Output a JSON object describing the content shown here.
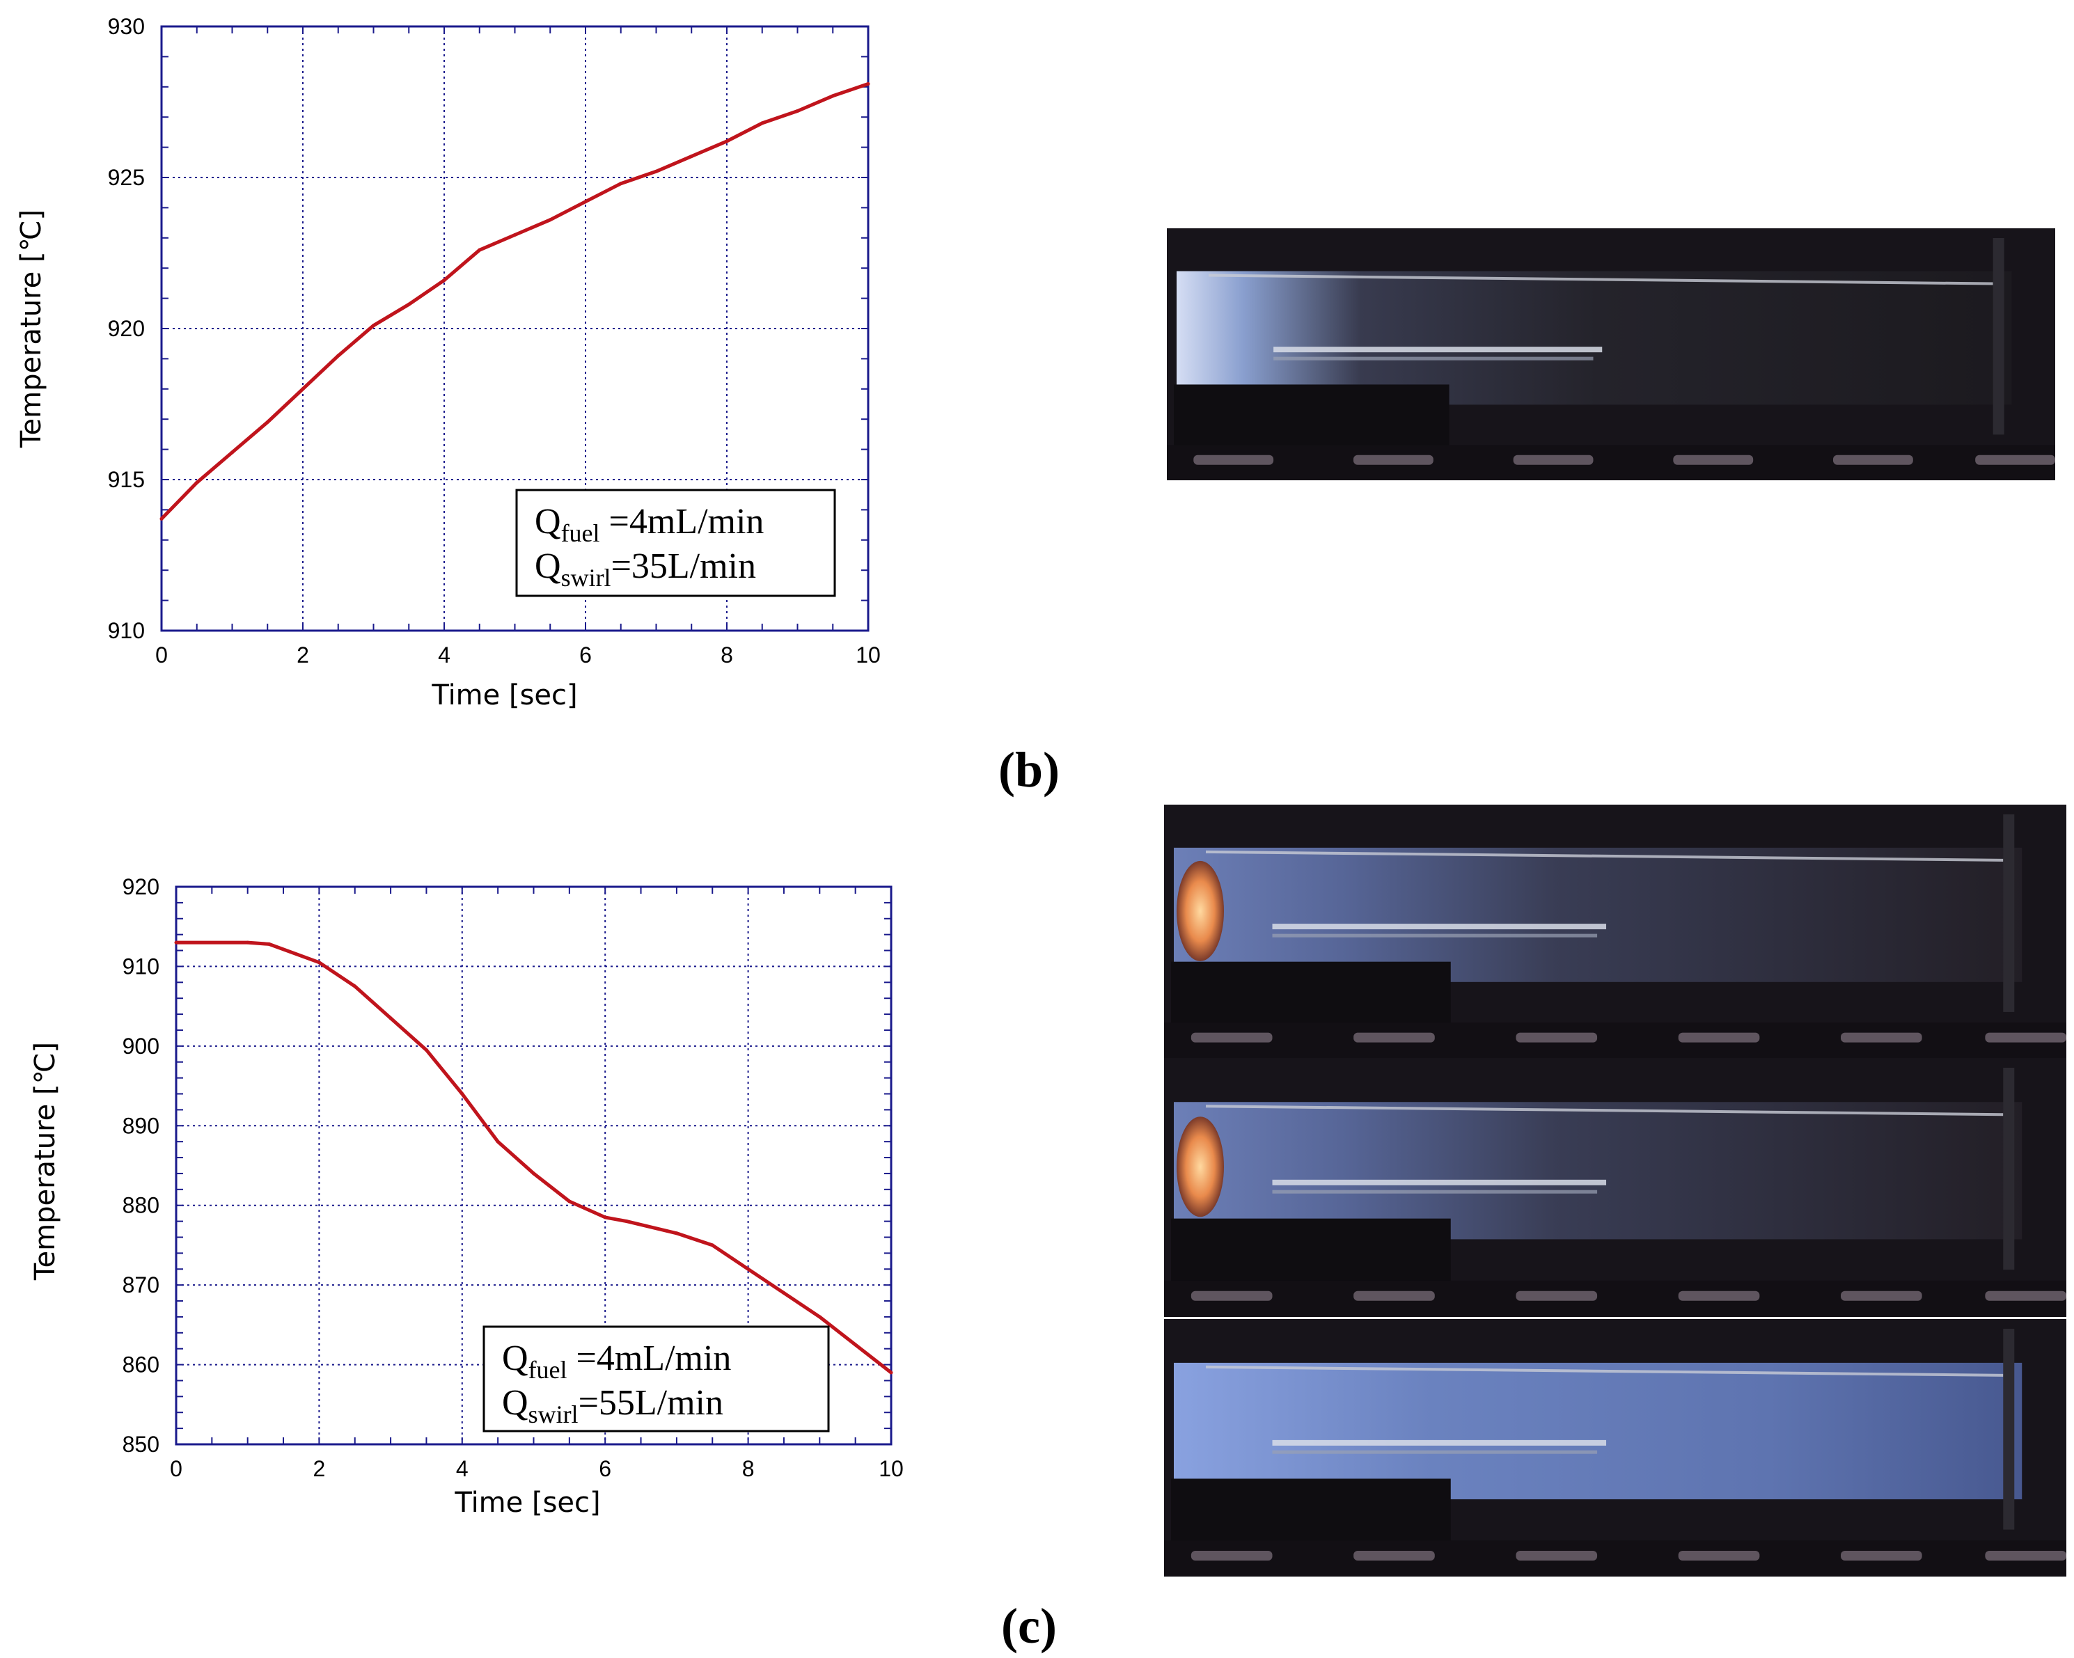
{
  "panels": [
    {
      "id": "b",
      "label": "(b)"
    },
    {
      "id": "c",
      "label": "(c)"
    }
  ],
  "chart_data": [
    {
      "type": "line",
      "panel": "b",
      "xlabel": "Time  [sec]",
      "ylabel": "Temperature  [℃]",
      "xlim": [
        0,
        10
      ],
      "ylim": [
        910,
        930
      ],
      "xticks": [
        "0",
        "2",
        "4",
        "6",
        "8",
        "10"
      ],
      "yticks": [
        "910",
        "915",
        "920",
        "925",
        "930"
      ],
      "grid": true,
      "line_color": "#c0141c",
      "legend": {
        "line1": {
          "prefix": "Q",
          "sub": "fuel",
          "suffix": " =4mL/min"
        },
        "line2": {
          "prefix": "Q",
          "sub": "swirl",
          "suffix": "=35L/min"
        },
        "position": "bottom-right"
      },
      "series": [
        {
          "x": [
            0,
            0.5,
            1,
            1.5,
            2,
            2.5,
            3,
            3.5,
            4,
            4.5,
            5,
            5.5,
            6,
            6.5,
            7,
            7.5,
            8,
            8.5,
            9,
            9.5,
            10
          ],
          "y": [
            913.7,
            914.9,
            915.9,
            916.9,
            918.0,
            919.1,
            920.1,
            920.8,
            921.6,
            922.6,
            923.1,
            923.6,
            924.2,
            924.8,
            925.2,
            925.7,
            926.2,
            926.8,
            927.2,
            927.7,
            928.1
          ]
        }
      ]
    },
    {
      "type": "line",
      "panel": "c",
      "xlabel": "Time  [sec]",
      "ylabel": "Temperature  [℃]",
      "xlim": [
        0,
        10
      ],
      "ylim": [
        850,
        920
      ],
      "xticks": [
        "0",
        "2",
        "4",
        "6",
        "8",
        "10"
      ],
      "yticks": [
        "850",
        "860",
        "870",
        "880",
        "890",
        "900",
        "910",
        "920"
      ],
      "grid": true,
      "line_color": "#c0141c",
      "legend": {
        "line1": {
          "prefix": "Q",
          "sub": "fuel",
          "suffix": " =4mL/min"
        },
        "line2": {
          "prefix": "Q",
          "sub": "swirl",
          "suffix": "=55L/min"
        },
        "position": "bottom-right"
      },
      "series": [
        {
          "x": [
            0,
            1,
            1.3,
            2,
            2.5,
            3,
            3.5,
            4,
            4.5,
            5,
            5.5,
            6,
            6.3,
            7,
            7.5,
            8,
            8.5,
            9,
            9.5,
            10
          ],
          "y": [
            913,
            913,
            912.8,
            910.5,
            907.5,
            903.5,
            899.5,
            894,
            888,
            884,
            880.5,
            878.5,
            878,
            876.5,
            875,
            872,
            869,
            866,
            862.5,
            859
          ]
        }
      ]
    }
  ],
  "photos": [
    {
      "panel": "b",
      "flame": "light-blue",
      "glow": false
    },
    {
      "panel": "c",
      "flame": "light-blue",
      "glow": true
    },
    {
      "panel": "c",
      "flame": "light-blue",
      "glow": true
    },
    {
      "panel": "c",
      "flame": "bright-blue",
      "glow": false
    }
  ]
}
